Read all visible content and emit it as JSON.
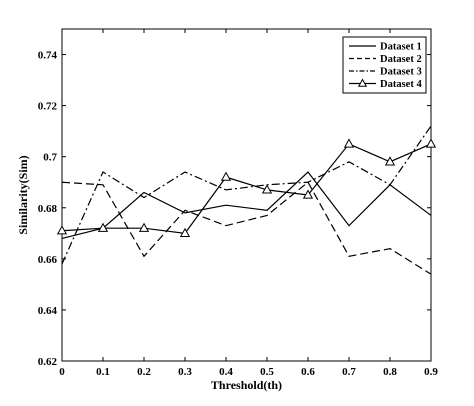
{
  "chart_data": {
    "type": "line",
    "xlabel": "Threshold(th)",
    "ylabel": "Similarity(Sim)",
    "xlim": [
      0,
      0.9
    ],
    "ylim": [
      0.62,
      0.75
    ],
    "xticks": [
      "0",
      "0.1",
      "0.2",
      "0.3",
      "0.4",
      "0.5",
      "0.6",
      "0.7",
      "0.8",
      "0.9"
    ],
    "yticks": [
      "0.62",
      "0.64",
      "0.66",
      "0.68",
      "0.7",
      "0.72",
      "0.74"
    ],
    "x": [
      0,
      0.1,
      0.2,
      0.3,
      0.4,
      0.5,
      0.6,
      0.7,
      0.8,
      0.9
    ],
    "grid": false,
    "legend_position": "top-right",
    "series": [
      {
        "name": "Dataset 1",
        "style": "solid",
        "marker": "none",
        "values": [
          0.668,
          0.672,
          0.686,
          0.678,
          0.681,
          0.679,
          0.694,
          0.673,
          0.689,
          0.677
        ]
      },
      {
        "name": "Dataset 2",
        "style": "dashed",
        "marker": "none",
        "values": [
          0.69,
          0.689,
          0.661,
          0.679,
          0.673,
          0.677,
          0.69,
          0.661,
          0.664,
          0.654
        ]
      },
      {
        "name": "Dataset 3",
        "style": "dashdot",
        "marker": "none",
        "values": [
          0.658,
          0.694,
          0.684,
          0.694,
          0.687,
          0.689,
          0.69,
          0.698,
          0.689,
          0.712
        ]
      },
      {
        "name": "Dataset 4",
        "style": "solid",
        "marker": "triangle",
        "values": [
          0.671,
          0.672,
          0.672,
          0.67,
          0.692,
          0.687,
          0.685,
          0.705,
          0.698,
          0.705
        ]
      }
    ]
  }
}
